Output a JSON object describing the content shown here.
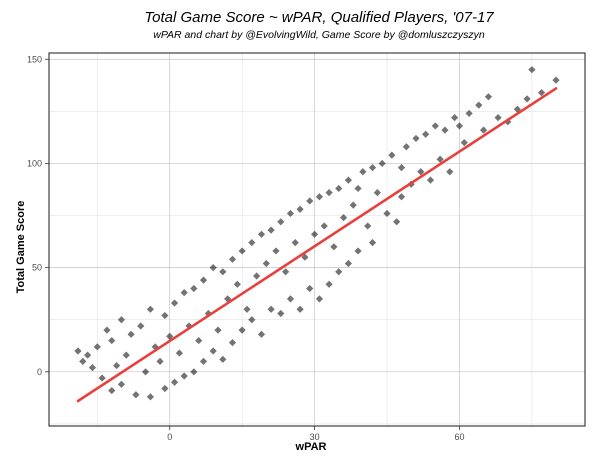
{
  "chart_data": {
    "type": "scatter",
    "title": "Total Game Score ~ wPAR, Qualified Players, '07-17",
    "subtitle": "wPAR and chart by @EvolvingWild, Game Score by @domluszczyszyn",
    "xlabel": "wPAR",
    "ylabel": "Total Game Score",
    "xlim": [
      -25,
      86
    ],
    "ylim": [
      -26,
      153
    ],
    "x_ticks": [
      0,
      30,
      60
    ],
    "y_ticks": [
      0,
      50,
      100,
      150
    ],
    "grid": true,
    "legend": "none",
    "point_color": "#000000",
    "point_opacity": 0.55,
    "point_shape": "diamond",
    "trend_line": {
      "color": "#e8403c",
      "x": [
        -19,
        80
      ],
      "y": [
        -14,
        136
      ]
    },
    "points": [
      [
        -19,
        10
      ],
      [
        -18,
        5
      ],
      [
        -17,
        8
      ],
      [
        -16,
        2
      ],
      [
        -15,
        12
      ],
      [
        -14,
        -3
      ],
      [
        -13,
        20
      ],
      [
        -12,
        15
      ],
      [
        -12,
        -9
      ],
      [
        -11,
        3
      ],
      [
        -10,
        25
      ],
      [
        -10,
        -6
      ],
      [
        -9,
        8
      ],
      [
        -8,
        18
      ],
      [
        -7,
        -11
      ],
      [
        -6,
        22
      ],
      [
        -5,
        0
      ],
      [
        -4,
        30
      ],
      [
        -4,
        -12
      ],
      [
        -3,
        12
      ],
      [
        -2,
        5
      ],
      [
        -1,
        27
      ],
      [
        -1,
        -8
      ],
      [
        0,
        17
      ],
      [
        1,
        33
      ],
      [
        1,
        -5
      ],
      [
        2,
        9
      ],
      [
        3,
        38
      ],
      [
        3,
        -2
      ],
      [
        4,
        22
      ],
      [
        5,
        40
      ],
      [
        5,
        0
      ],
      [
        6,
        15
      ],
      [
        7,
        44
      ],
      [
        7,
        5
      ],
      [
        8,
        28
      ],
      [
        9,
        50
      ],
      [
        9,
        10
      ],
      [
        10,
        20
      ],
      [
        11,
        48
      ],
      [
        11,
        6
      ],
      [
        12,
        35
      ],
      [
        13,
        54
      ],
      [
        13,
        14
      ],
      [
        14,
        42
      ],
      [
        15,
        58
      ],
      [
        15,
        20
      ],
      [
        16,
        30
      ],
      [
        17,
        62
      ],
      [
        17,
        25
      ],
      [
        18,
        46
      ],
      [
        19,
        66
      ],
      [
        19,
        18
      ],
      [
        20,
        52
      ],
      [
        21,
        68
      ],
      [
        21,
        30
      ],
      [
        22,
        58
      ],
      [
        23,
        72
      ],
      [
        23,
        28
      ],
      [
        24,
        48
      ],
      [
        25,
        76
      ],
      [
        25,
        35
      ],
      [
        26,
        62
      ],
      [
        27,
        78
      ],
      [
        27,
        30
      ],
      [
        28,
        55
      ],
      [
        29,
        82
      ],
      [
        29,
        40
      ],
      [
        30,
        66
      ],
      [
        31,
        84
      ],
      [
        31,
        35
      ],
      [
        32,
        70
      ],
      [
        33,
        86
      ],
      [
        33,
        42
      ],
      [
        34,
        60
      ],
      [
        35,
        88
      ],
      [
        35,
        48
      ],
      [
        36,
        74
      ],
      [
        37,
        92
      ],
      [
        37,
        52
      ],
      [
        38,
        80
      ],
      [
        39,
        88
      ],
      [
        39,
        58
      ],
      [
        40,
        96
      ],
      [
        41,
        70
      ],
      [
        42,
        98
      ],
      [
        42,
        62
      ],
      [
        43,
        86
      ],
      [
        44,
        100
      ],
      [
        45,
        76
      ],
      [
        46,
        104
      ],
      [
        47,
        72
      ],
      [
        48,
        98
      ],
      [
        48,
        84
      ],
      [
        49,
        108
      ],
      [
        50,
        90
      ],
      [
        51,
        112
      ],
      [
        52,
        96
      ],
      [
        53,
        114
      ],
      [
        54,
        92
      ],
      [
        55,
        118
      ],
      [
        56,
        102
      ],
      [
        57,
        116
      ],
      [
        58,
        96
      ],
      [
        59,
        122
      ],
      [
        60,
        118
      ],
      [
        61,
        110
      ],
      [
        62,
        124
      ],
      [
        64,
        128
      ],
      [
        65,
        116
      ],
      [
        66,
        132
      ],
      [
        68,
        122
      ],
      [
        70,
        120
      ],
      [
        72,
        126
      ],
      [
        74,
        131
      ],
      [
        75,
        145
      ],
      [
        77,
        134
      ],
      [
        80,
        140
      ]
    ]
  }
}
